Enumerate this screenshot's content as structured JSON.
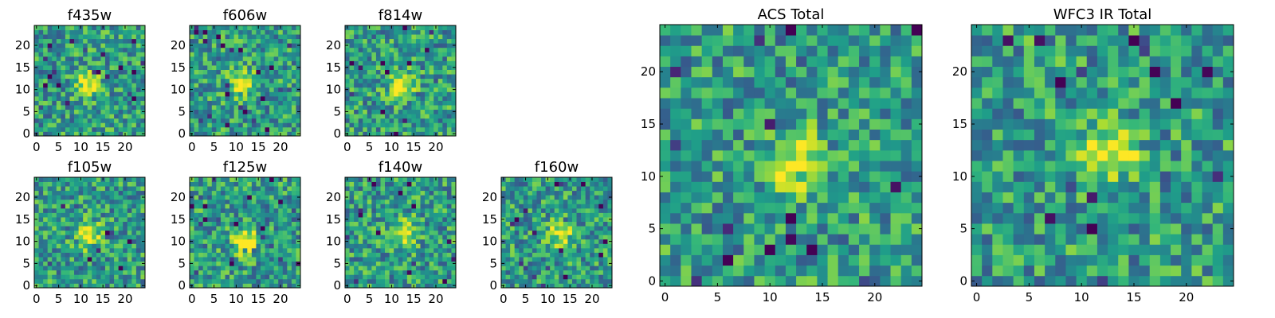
{
  "chart_data": [
    {
      "type": "heatmap",
      "title": "f435w",
      "xticks": [
        0,
        5,
        10,
        15,
        20
      ],
      "yticks": [
        0,
        5,
        10,
        15,
        20
      ],
      "xlim": [
        -0.5,
        24.5
      ],
      "ylim": [
        -0.5,
        24.5
      ],
      "grid": false,
      "colormap": "viridis",
      "source_peak": [
        11.5,
        11.5
      ]
    },
    {
      "type": "heatmap",
      "title": "f606w",
      "xticks": [
        0,
        5,
        10,
        15,
        20
      ],
      "yticks": [
        0,
        5,
        10,
        15,
        20
      ],
      "xlim": [
        -0.5,
        24.5
      ],
      "ylim": [
        -0.5,
        24.5
      ],
      "grid": false,
      "colormap": "viridis",
      "source_peak": [
        11.5,
        11.5
      ]
    },
    {
      "type": "heatmap",
      "title": "f814w",
      "xticks": [
        0,
        5,
        10,
        15,
        20
      ],
      "yticks": [
        0,
        5,
        10,
        15,
        20
      ],
      "xlim": [
        -0.5,
        24.5
      ],
      "ylim": [
        -0.5,
        24.5
      ],
      "grid": false,
      "colormap": "viridis",
      "source_peak": [
        12,
        11
      ]
    },
    {
      "type": "heatmap",
      "title": "f105w",
      "xticks": [
        0,
        5,
        10,
        15,
        20
      ],
      "yticks": [
        0,
        5,
        10,
        15,
        20
      ],
      "xlim": [
        -0.5,
        24.5
      ],
      "ylim": [
        -0.5,
        24.5
      ],
      "grid": false,
      "colormap": "viridis",
      "source_peak": [
        11.5,
        11.5
      ]
    },
    {
      "type": "heatmap",
      "title": "f125w",
      "xticks": [
        0,
        5,
        10,
        15,
        20
      ],
      "yticks": [
        0,
        5,
        10,
        15,
        20
      ],
      "xlim": [
        -0.5,
        24.5
      ],
      "ylim": [
        -0.5,
        24.5
      ],
      "grid": false,
      "colormap": "viridis",
      "source_peak": [
        12,
        10
      ]
    },
    {
      "type": "heatmap",
      "title": "f140w",
      "xticks": [
        0,
        5,
        10,
        15,
        20
      ],
      "yticks": [
        0,
        5,
        10,
        15,
        20
      ],
      "xlim": [
        -0.5,
        24.5
      ],
      "ylim": [
        -0.5,
        24.5
      ],
      "grid": false,
      "colormap": "viridis",
      "source_peak": [
        13,
        12
      ]
    },
    {
      "type": "heatmap",
      "title": "f160w",
      "xticks": [
        0,
        5,
        10,
        15,
        20
      ],
      "yticks": [
        0,
        5,
        10,
        15,
        20
      ],
      "xlim": [
        -0.5,
        24.5
      ],
      "ylim": [
        -0.5,
        24.5
      ],
      "grid": false,
      "colormap": "viridis",
      "source_peak": [
        13,
        12
      ]
    },
    {
      "type": "heatmap",
      "title": "ACS Total",
      "xticks": [
        0,
        5,
        10,
        15,
        20
      ],
      "yticks": [
        0,
        5,
        10,
        15,
        20
      ],
      "xlim": [
        -0.5,
        24.5
      ],
      "ylim": [
        -0.5,
        24.5
      ],
      "grid": false,
      "colormap": "viridis",
      "source_peak": [
        12,
        11.5
      ]
    },
    {
      "type": "heatmap",
      "title": "WFC3 IR Total",
      "xticks": [
        0,
        5,
        10,
        15,
        20
      ],
      "yticks": [
        0,
        5,
        10,
        15,
        20
      ],
      "xlim": [
        -0.5,
        24.5
      ],
      "ylim": [
        -0.5,
        24.5
      ],
      "grid": false,
      "colormap": "viridis",
      "source_peak": [
        12.5,
        12
      ]
    }
  ],
  "colors": {
    "viridis_low": "#440154",
    "viridis_mid": "#21918c",
    "viridis_high": "#fde725"
  }
}
